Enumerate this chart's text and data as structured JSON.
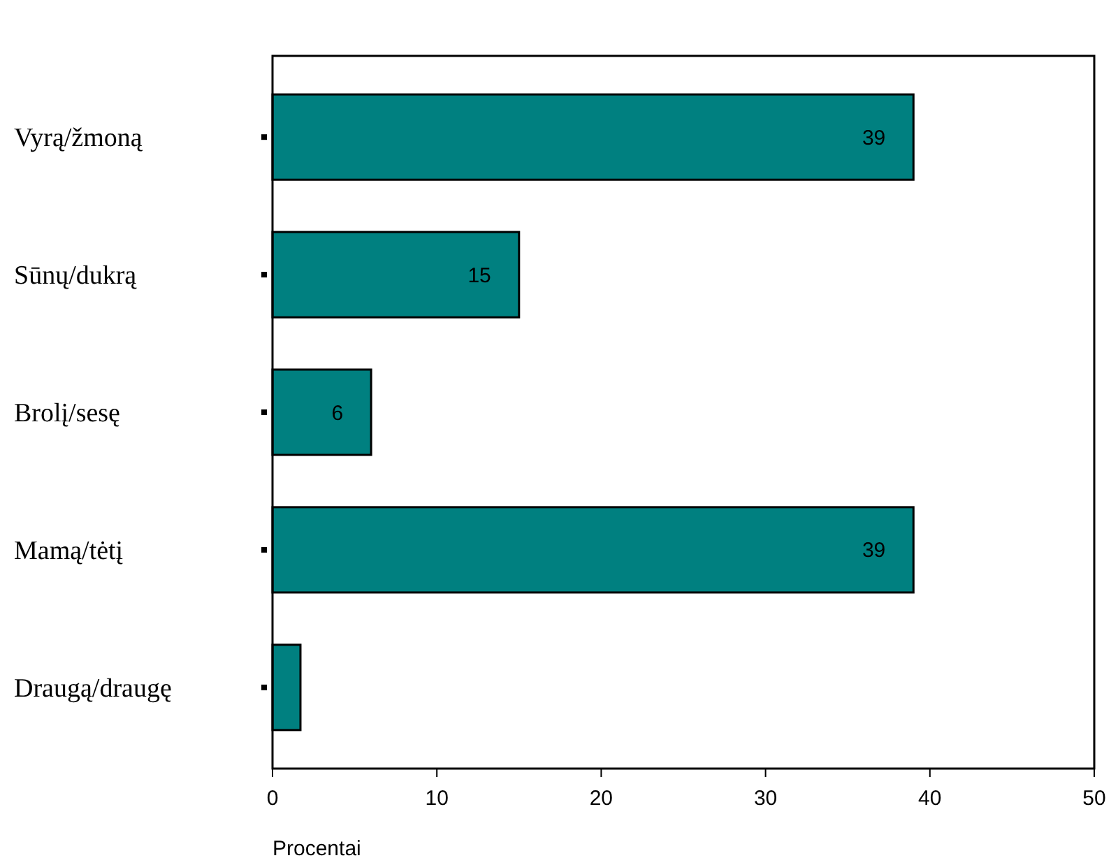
{
  "chart_data": {
    "type": "bar",
    "orientation": "horizontal",
    "categories": [
      "Vyrą/žmoną",
      "Sūnų/dukrą",
      "Brolį/sesę",
      "Mamą/tėtį",
      "Draugą/draugę"
    ],
    "values": [
      39,
      15,
      6,
      39,
      1.7
    ],
    "value_labels": [
      "39",
      "15",
      "6",
      "39",
      null
    ],
    "color": "#008080",
    "xlim": [
      0,
      50
    ],
    "xticks": [
      0,
      10,
      20,
      30,
      40,
      50
    ],
    "xlabel": "Procentai"
  }
}
